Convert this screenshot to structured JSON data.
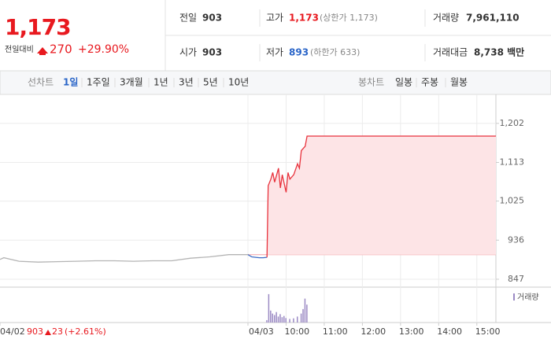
{
  "header": {
    "price": "1,173",
    "change_label": "전일대비",
    "change": "270",
    "change_pct": "+29.90%",
    "stats": [
      {
        "label": "전일",
        "value": "903"
      },
      {
        "label": "고가",
        "value": "1,173",
        "note": "(상한가 1,173)"
      },
      {
        "label": "거래량",
        "value": "7,961,110"
      },
      {
        "label": "시가",
        "value": "903"
      },
      {
        "label": "저가",
        "value": "893",
        "note": "(하한가 633)"
      },
      {
        "label": "거래대금",
        "value": "8,738 백만"
      }
    ]
  },
  "tabs": {
    "line_label": "선차트",
    "line": [
      "1일",
      "1주일",
      "3개월",
      "1년",
      "3년",
      "5년",
      "10년"
    ],
    "candle_label": "봉차트",
    "candle": [
      "일봉",
      "주봉",
      "월봉"
    ]
  },
  "chart_data": {
    "type": "line",
    "x_note": {
      "date": "04/02",
      "price": "903",
      "change": "23",
      "pct": "(+2.61%)"
    },
    "xlim": [
      0,
      13
    ],
    "ylim": [
      829,
      1268
    ],
    "xticks": [
      {
        "value": 0,
        "label": "04/02"
      },
      {
        "value": 6.5,
        "label": "04/03"
      },
      {
        "value": 7.5,
        "label": "10:00"
      },
      {
        "value": 8.5,
        "label": "11:00"
      },
      {
        "value": 9.5,
        "label": "12:00"
      },
      {
        "value": 10.5,
        "label": "13:00"
      },
      {
        "value": 11.5,
        "label": "14:00"
      },
      {
        "value": 12.5,
        "label": "15:00"
      }
    ],
    "yticks": [
      847,
      936,
      {
        "value": 1025,
        "label": "1,025"
      },
      {
        "value": 1113,
        "label": "1,113"
      },
      {
        "value": 1202,
        "label": "1,202"
      }
    ],
    "baseline": 903,
    "grid": true,
    "series": [
      {
        "color": "#b4b4b4",
        "x": [
          0,
          0.1,
          0.5,
          1,
          1.5,
          2,
          2.5,
          3,
          3.5,
          4,
          4.5,
          5,
          5.5,
          6,
          6.5
        ],
        "values": [
          892,
          896,
          888,
          886,
          887,
          888,
          889,
          889,
          888,
          889,
          889,
          895,
          898,
          903,
          903
        ]
      },
      {
        "color": "#3b6cc6",
        "x": [
          6.5,
          6.6,
          6.7,
          6.8,
          6.9,
          7.0
        ],
        "values": [
          903,
          898,
          897,
          896,
          896,
          897
        ]
      },
      {
        "color": "#e8323c",
        "fill": "#fde4e6",
        "x": [
          7.0,
          7.03,
          7.1,
          7.15,
          7.2,
          7.3,
          7.35,
          7.4,
          7.5,
          7.55,
          7.6,
          7.7,
          7.8,
          7.85,
          7.9,
          8.0,
          8.05,
          13.0
        ],
        "values": [
          897,
          1060,
          1075,
          1090,
          1068,
          1100,
          1055,
          1085,
          1045,
          1090,
          1075,
          1085,
          1110,
          1100,
          1140,
          1150,
          1173,
          1173
        ]
      }
    ],
    "volume": {
      "name": "거래량",
      "color": "#9b8ac4",
      "ylim": [
        0,
        100
      ],
      "x": [
        7.0,
        7.05,
        7.1,
        7.15,
        7.2,
        7.25,
        7.3,
        7.35,
        7.4,
        7.45,
        7.5,
        7.6,
        7.7,
        7.8,
        7.9,
        7.95,
        8.0,
        8.05
      ],
      "values": [
        8,
        95,
        40,
        30,
        25,
        35,
        20,
        28,
        18,
        22,
        15,
        12,
        14,
        20,
        30,
        45,
        80,
        60
      ]
    }
  }
}
